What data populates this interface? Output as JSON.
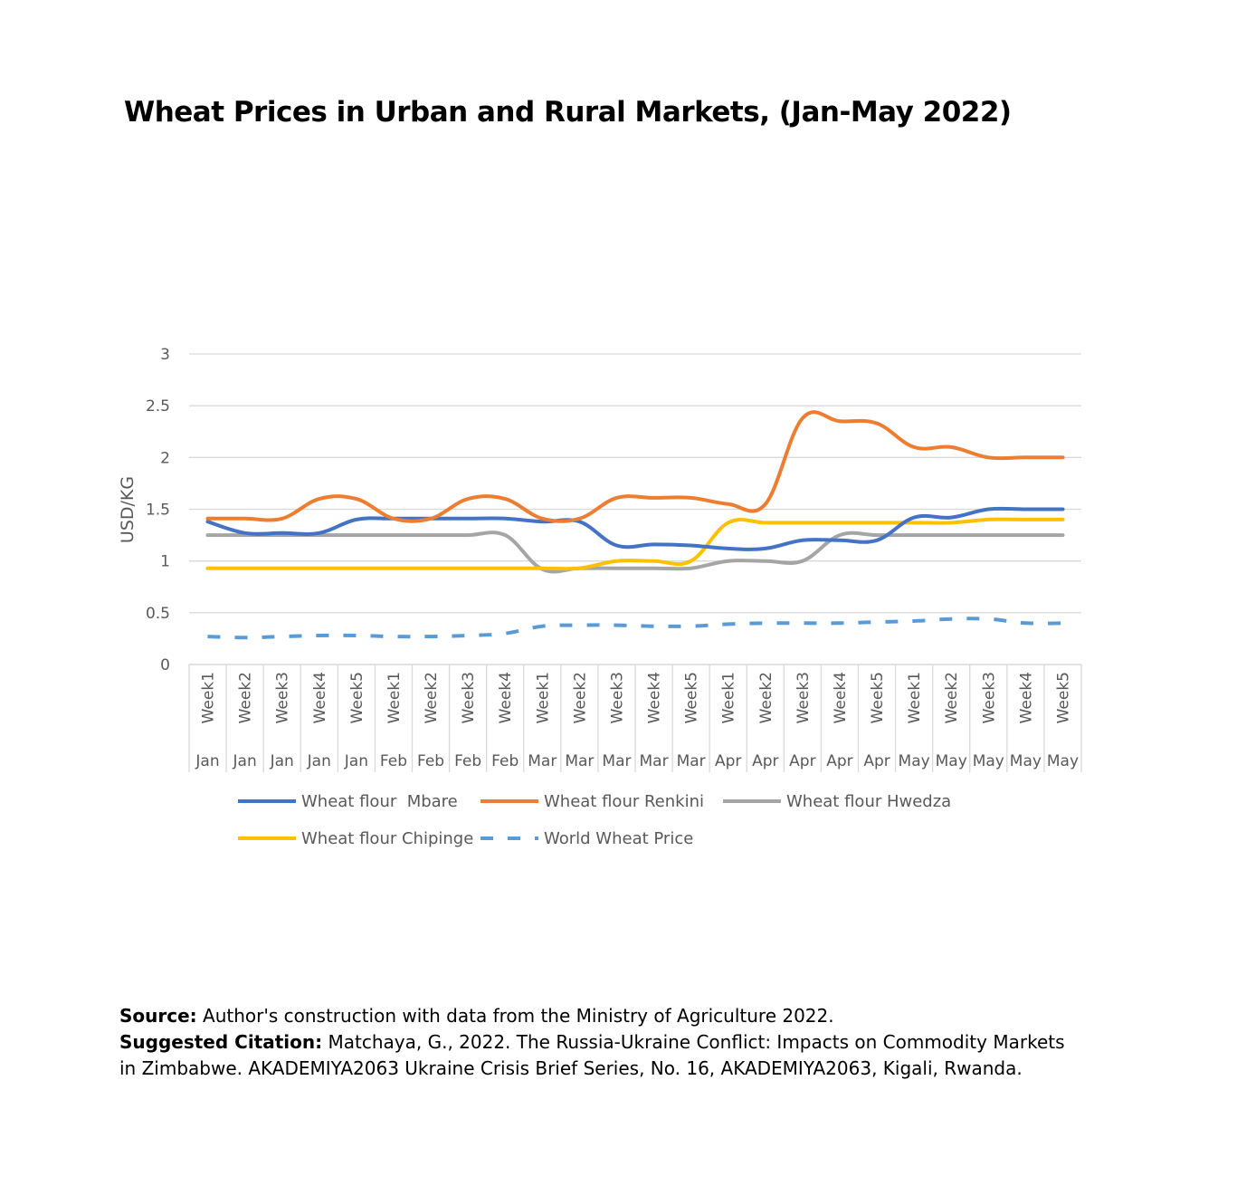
{
  "chart_data": {
    "type": "line",
    "title": "Wheat Prices in Urban and Rural Markets, (Jan-May 2022)",
    "ylabel": "USD/KG",
    "xlabel": "",
    "ylim": [
      0,
      3
    ],
    "yticks": [
      "0",
      "0.5",
      "1",
      "1.5",
      "2",
      "2.5",
      "3"
    ],
    "ytick_values": [
      0,
      0.5,
      1,
      1.5,
      2,
      2.5,
      3
    ],
    "grid": true,
    "legend_position": "bottom",
    "categories_week": [
      "Week1",
      "Week2",
      "Week3",
      "Week4",
      "Week5",
      "Week1",
      "Week2",
      "Week3",
      "Week4",
      "Week1",
      "Week2",
      "Week3",
      "Week4",
      "Week5",
      "Week1",
      "Week2",
      "Week3",
      "Week4",
      "Week5",
      "Week1",
      "Week2",
      "Week3",
      "Week4",
      "Week5"
    ],
    "categories_month": [
      "Jan",
      "Jan",
      "Jan",
      "Jan",
      "Jan",
      "Feb",
      "Feb",
      "Feb",
      "Feb",
      "Mar",
      "Mar",
      "Mar",
      "Mar",
      "Mar",
      "Apr",
      "Apr",
      "Apr",
      "Apr",
      "Apr",
      "May",
      "May",
      "May",
      "May",
      "May"
    ],
    "series": [
      {
        "name": "Wheat flour  Mbare",
        "color": "#4472C4",
        "dash": false,
        "values": [
          1.38,
          1.27,
          1.27,
          1.27,
          1.4,
          1.41,
          1.41,
          1.41,
          1.41,
          1.38,
          1.38,
          1.15,
          1.16,
          1.15,
          1.12,
          1.12,
          1.2,
          1.2,
          1.2,
          1.42,
          1.42,
          1.5,
          1.5,
          1.5
        ]
      },
      {
        "name": "Wheat flour Renkini",
        "color": "#ED7D31",
        "dash": false,
        "values": [
          1.41,
          1.41,
          1.41,
          1.6,
          1.6,
          1.41,
          1.41,
          1.6,
          1.6,
          1.41,
          1.41,
          1.61,
          1.61,
          1.61,
          1.55,
          1.55,
          2.38,
          2.35,
          2.33,
          2.1,
          2.1,
          2.0,
          2.0,
          2.0
        ]
      },
      {
        "name": "Wheat flour Hwedza",
        "color": "#A5A5A5",
        "dash": false,
        "values": [
          1.25,
          1.25,
          1.25,
          1.25,
          1.25,
          1.25,
          1.25,
          1.25,
          1.25,
          0.92,
          0.93,
          0.93,
          0.93,
          0.93,
          1.0,
          1.0,
          1.0,
          1.25,
          1.25,
          1.25,
          1.25,
          1.25,
          1.25,
          1.25
        ]
      },
      {
        "name": "Wheat flour Chipinge",
        "color": "#FFC000",
        "dash": false,
        "values": [
          0.93,
          0.93,
          0.93,
          0.93,
          0.93,
          0.93,
          0.93,
          0.93,
          0.93,
          0.93,
          0.93,
          1.0,
          1.0,
          1.0,
          1.37,
          1.37,
          1.37,
          1.37,
          1.37,
          1.37,
          1.37,
          1.4,
          1.4,
          1.4
        ]
      },
      {
        "name": "World Wheat Price",
        "color": "#5B9BD5",
        "dash": true,
        "values": [
          0.27,
          0.26,
          0.27,
          0.28,
          0.28,
          0.27,
          0.27,
          0.28,
          0.3,
          0.37,
          0.38,
          0.38,
          0.37,
          0.37,
          0.39,
          0.4,
          0.4,
          0.4,
          0.41,
          0.42,
          0.44,
          0.44,
          0.4,
          0.4
        ]
      }
    ]
  },
  "footer": {
    "source_label": "Source:",
    "source_text": "Author's construction with data from the Ministry of Agriculture 2022.",
    "citation_label": "Suggested Citation:",
    "citation_text": "Matchaya, G., 2022. The Russia-Ukraine Conflict: Impacts on Commodity Markets in Zimbabwe. AKADEMIYA2063 Ukraine Crisis Brief Series, No. 16, AKADEMIYA2063, Kigali, Rwanda."
  }
}
